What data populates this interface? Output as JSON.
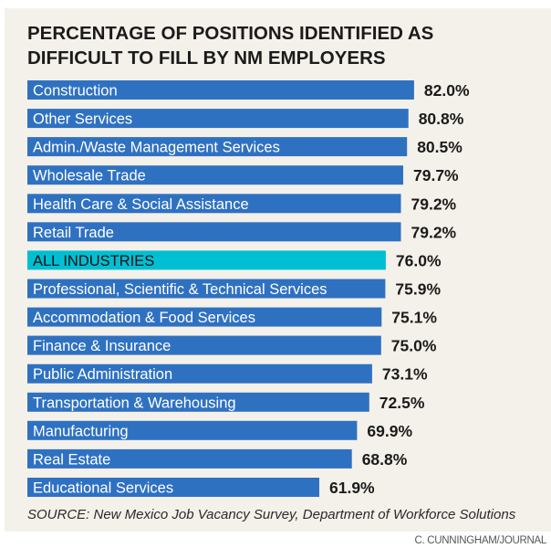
{
  "chart_data": {
    "type": "bar",
    "orientation": "horizontal",
    "title": "PERCENTAGE OF POSITIONS IDENTIFIED AS DIFFICULT TO FILL BY NM EMPLOYERS",
    "title_lines": [
      "PERCENTAGE OF POSITIONS IDENTIFIED AS",
      "DIFFICULT TO FILL BY NM EMPLOYERS"
    ],
    "xlabel": "",
    "ylabel": "",
    "xlim": [
      0,
      100
    ],
    "grid": false,
    "legend": "none",
    "value_suffix": "%",
    "categories": [
      "Construction",
      "Other Services",
      "Admin./Waste Management Services",
      "Wholesale Trade",
      "Health Care & Social Assistance",
      "Retail Trade",
      "ALL INDUSTRIES",
      "Professional, Scientific & Technical Services",
      "Accommodation & Food Services",
      "Finance & Insurance",
      "Public Administration",
      "Transportation & Warehousing",
      "Manufacturing",
      "Real Estate",
      "Educational Services"
    ],
    "values": [
      82.0,
      80.8,
      80.5,
      79.7,
      79.2,
      79.2,
      76.0,
      75.9,
      75.1,
      75.0,
      73.1,
      72.5,
      69.9,
      68.8,
      61.9
    ],
    "value_labels": [
      "82.0%",
      "80.8%",
      "80.5%",
      "79.7%",
      "79.2%",
      "79.2%",
      "76.0%",
      "75.9%",
      "75.1%",
      "75.0%",
      "73.1%",
      "72.5%",
      "69.9%",
      "68.8%",
      "61.9%"
    ],
    "highlight_index": 6,
    "colors": {
      "bar": "#2f71c1",
      "highlight_bar": "#00bfd3",
      "bar_text": "#ffffff",
      "highlight_text": "#111111",
      "value_text": "#1b1b1b"
    }
  },
  "source": "SOURCE: New Mexico Job Vacancy Survey, Department of Workforce Solutions",
  "credit": "C. CUNNINGHAM/JOURNAL"
}
